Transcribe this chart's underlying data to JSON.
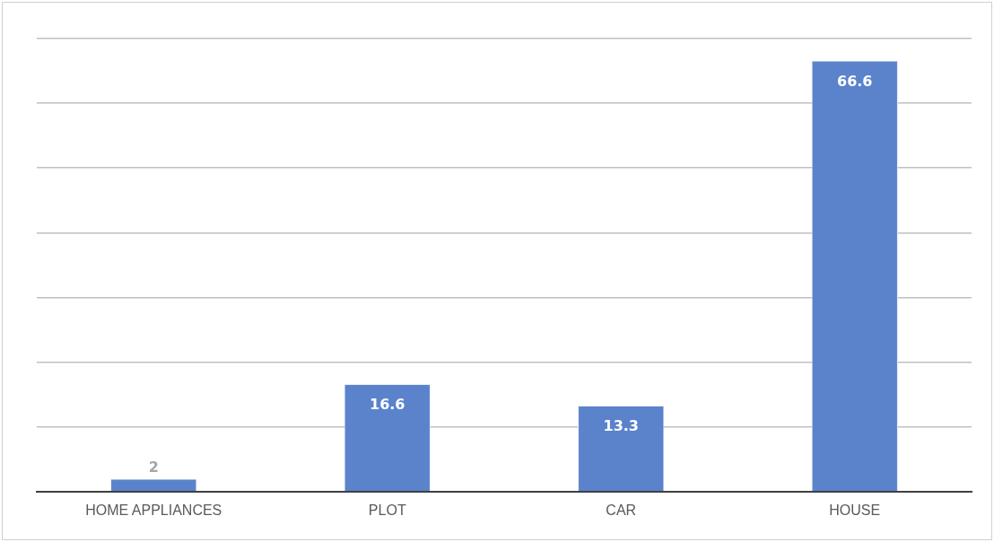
{
  "chart_data": {
    "type": "bar",
    "categories": [
      "HOME APPLIANCES",
      "PLOT",
      "CAR",
      "HOUSE"
    ],
    "values": [
      2,
      16.6,
      13.3,
      66.6
    ],
    "color": "#5b83cc",
    "grid": "y",
    "tick_labels": "x",
    "data_labels": true,
    "legend": false
  }
}
